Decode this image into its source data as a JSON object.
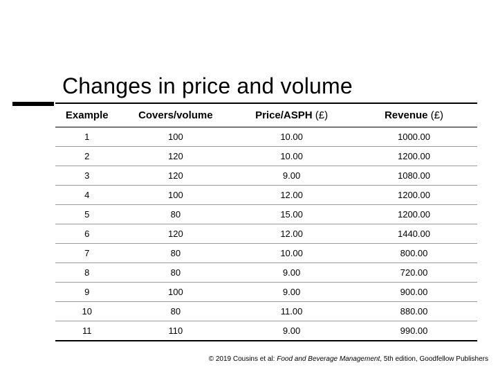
{
  "title": "Changes in price and volume",
  "table": {
    "columns": [
      {
        "label": "Example",
        "unit": ""
      },
      {
        "label": "Covers/volume",
        "unit": ""
      },
      {
        "label": "Price/ASPH",
        "unit": " (£)"
      },
      {
        "label": "Revenue",
        "unit": " (£)"
      }
    ],
    "rows": [
      {
        "example": "1",
        "covers": "100",
        "price": "10.00",
        "revenue": "1000.00"
      },
      {
        "example": "2",
        "covers": "120",
        "price": "10.00",
        "revenue": "1200.00"
      },
      {
        "example": "3",
        "covers": "120",
        "price": "9.00",
        "revenue": "1080.00"
      },
      {
        "example": "4",
        "covers": "100",
        "price": "12.00",
        "revenue": "1200.00"
      },
      {
        "example": "5",
        "covers": "80",
        "price": "15.00",
        "revenue": "1200.00"
      },
      {
        "example": "6",
        "covers": "120",
        "price": "12.00",
        "revenue": "1440.00"
      },
      {
        "example": "7",
        "covers": "80",
        "price": "10.00",
        "revenue": "800.00"
      },
      {
        "example": "8",
        "covers": "80",
        "price": "9.00",
        "revenue": "720.00"
      },
      {
        "example": "9",
        "covers": "100",
        "price": "9.00",
        "revenue": "900.00"
      },
      {
        "example": "10",
        "covers": "80",
        "price": "11.00",
        "revenue": "880.00"
      },
      {
        "example": "11",
        "covers": "110",
        "price": "9.00",
        "revenue": "990.00"
      }
    ]
  },
  "footer": {
    "prefix": "© 2019 Cousins et al: ",
    "italic": "Food and Beverage Management",
    "suffix": ", 5th edition, Goodfellow Publishers"
  },
  "colors": {
    "text": "#000000",
    "row_border": "#9a9a9a",
    "background": "#ffffff"
  }
}
